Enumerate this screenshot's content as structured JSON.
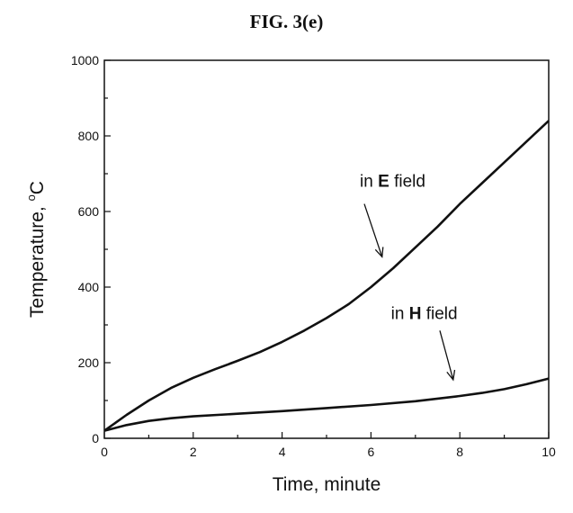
{
  "figure_title": "FIG. 3(e)",
  "chart_data": {
    "type": "line",
    "title": "FIG. 3(e)",
    "xlabel": "Time, minute",
    "ylabel_prefix": "Temperature, ",
    "ylabel_super": "o",
    "ylabel_suffix": "C",
    "xlim": [
      0,
      10
    ],
    "ylim": [
      0,
      1000
    ],
    "x_ticks": [
      0,
      2,
      4,
      6,
      8,
      10
    ],
    "y_ticks": [
      0,
      200,
      400,
      600,
      800,
      1000
    ],
    "grid": false,
    "series": [
      {
        "x": [
          0,
          0.5,
          1,
          1.5,
          2,
          2.5,
          3,
          3.5,
          4,
          4.5,
          5,
          5.5,
          6,
          6.5,
          7,
          7.5,
          8,
          8.5,
          9,
          9.5,
          10
        ],
        "y": [
          20,
          62,
          100,
          133,
          160,
          183,
          205,
          228,
          255,
          285,
          318,
          355,
          400,
          450,
          505,
          560,
          620,
          675,
          730,
          785,
          840
        ]
      },
      {
        "x": [
          0,
          0.5,
          1,
          1.5,
          2,
          3,
          4,
          5,
          6,
          7,
          8,
          8.5,
          9,
          9.5,
          10
        ],
        "y": [
          20,
          35,
          46,
          53,
          58,
          65,
          72,
          80,
          88,
          98,
          112,
          120,
          130,
          143,
          158
        ]
      }
    ],
    "annotations": [
      {
        "pre": "in ",
        "bold": "E",
        "post": " field",
        "text_x": 5.75,
        "text_y": 665,
        "arrow_from": [
          5.85,
          620
        ],
        "arrow_to": [
          6.25,
          480
        ]
      },
      {
        "pre": "in ",
        "bold": "H",
        "post": " field",
        "text_x": 6.45,
        "text_y": 315,
        "arrow_from": [
          7.55,
          285
        ],
        "arrow_to": [
          7.85,
          155
        ]
      }
    ]
  }
}
